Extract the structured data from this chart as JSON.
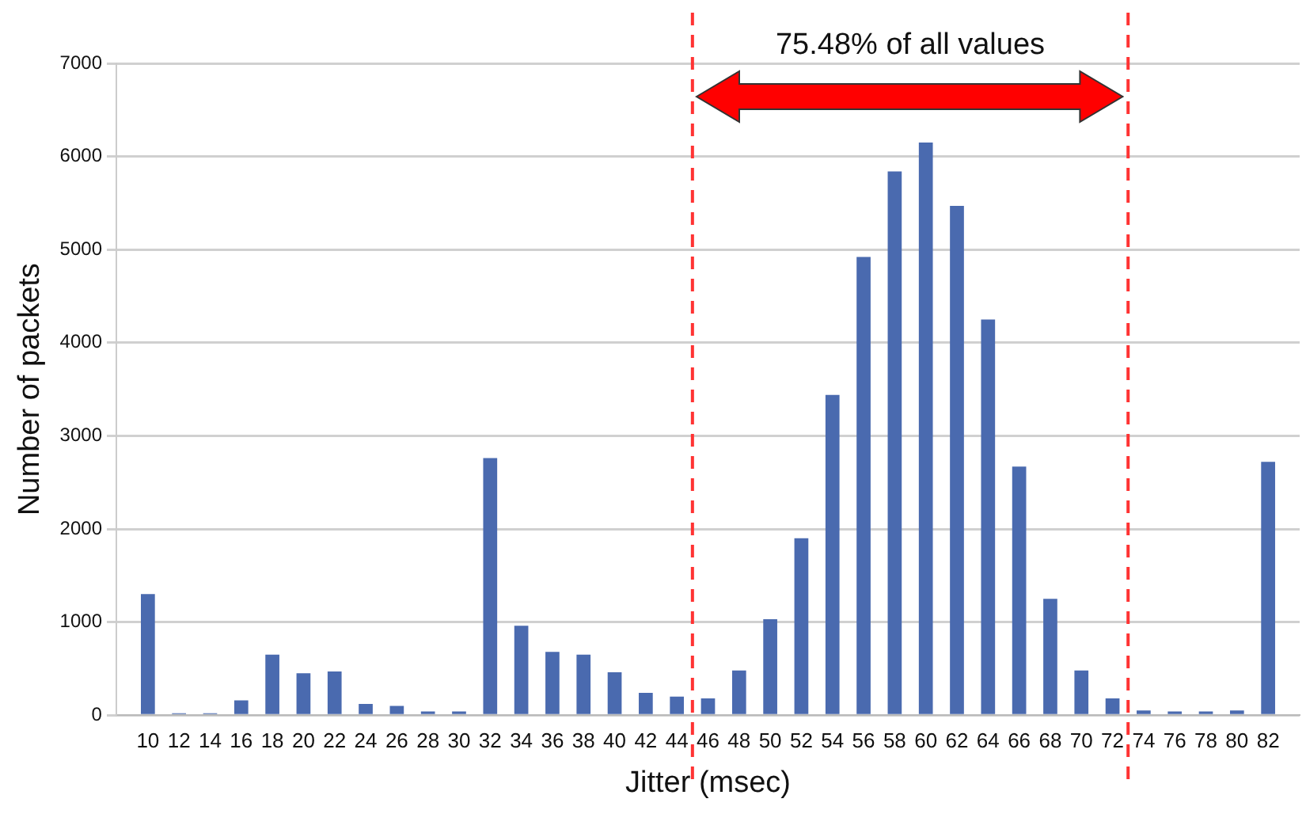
{
  "chart_data": {
    "type": "bar",
    "xlabel": "Jitter (msec)",
    "ylabel": "Number of packets",
    "x": [
      10,
      12,
      14,
      16,
      18,
      20,
      22,
      24,
      26,
      28,
      30,
      32,
      34,
      36,
      38,
      40,
      42,
      44,
      46,
      48,
      50,
      52,
      54,
      56,
      58,
      60,
      62,
      64,
      66,
      68,
      70,
      72,
      74,
      76,
      78,
      80,
      82
    ],
    "values": [
      1300,
      20,
      20,
      160,
      650,
      450,
      470,
      120,
      100,
      40,
      40,
      2760,
      960,
      680,
      650,
      460,
      240,
      200,
      180,
      480,
      1030,
      1900,
      3440,
      4920,
      5840,
      6150,
      5470,
      4250,
      2670,
      1250,
      480,
      180,
      50,
      40,
      40,
      50,
      2720
    ],
    "color": "#4a6aaf",
    "xlim": [
      9,
      83
    ],
    "xticks": [
      10,
      12,
      14,
      16,
      18,
      20,
      22,
      24,
      26,
      28,
      30,
      32,
      34,
      36,
      38,
      40,
      42,
      44,
      46,
      48,
      50,
      52,
      54,
      56,
      58,
      60,
      62,
      64,
      66,
      68,
      70,
      72,
      74,
      76,
      78,
      80,
      82
    ],
    "ylim": [
      0,
      7000
    ],
    "yticks": [
      0,
      1000,
      2000,
      3000,
      4000,
      5000,
      6000,
      7000
    ],
    "grid": "y",
    "legend": false,
    "ref_lines": [
      {
        "axis": "x",
        "value": 45,
        "color": "#ff3333",
        "line_style": "dashed"
      },
      {
        "axis": "x",
        "value": 73,
        "color": "#ff3333",
        "line_style": "dashed"
      }
    ],
    "annotations": [
      "75.48% of all values"
    ]
  }
}
